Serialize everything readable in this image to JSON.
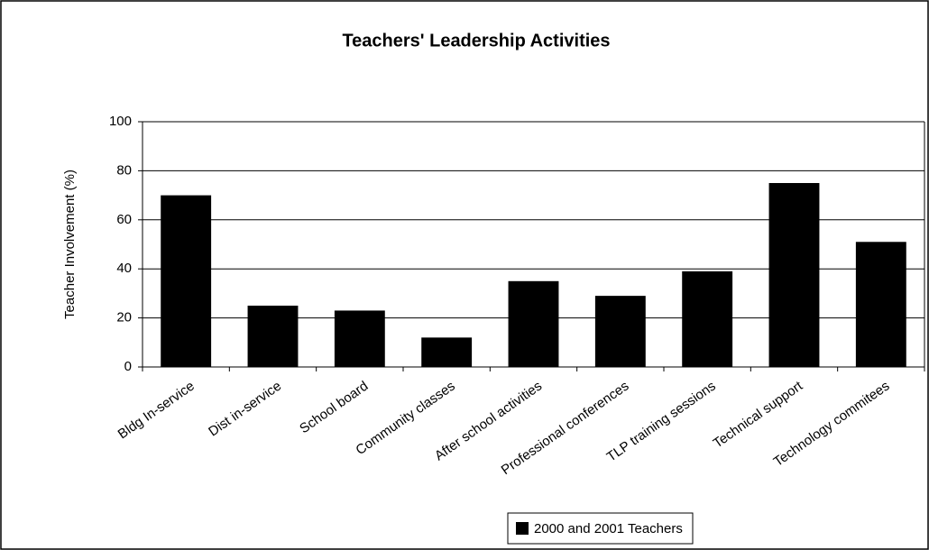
{
  "chart_data": {
    "type": "bar",
    "title": "Teachers' Leadership Activities",
    "y_label": "Teacher Involvement (%)",
    "categories": [
      "Bldg In-service",
      "Dist in-service",
      "School board",
      "Community classes",
      "After school activities",
      "Professional conferences",
      "TLP training sessions",
      "Technical support",
      "Technology commitees"
    ],
    "series": [
      {
        "name": "2000 and 2001 Teachers",
        "color": "#000000",
        "values": [
          70,
          25,
          23,
          12,
          35,
          29,
          39,
          75,
          51
        ]
      }
    ],
    "ylim": [
      0,
      100
    ],
    "yticks": [
      0,
      20,
      40,
      60,
      80,
      100
    ],
    "grid": true,
    "legend": "bottom"
  }
}
